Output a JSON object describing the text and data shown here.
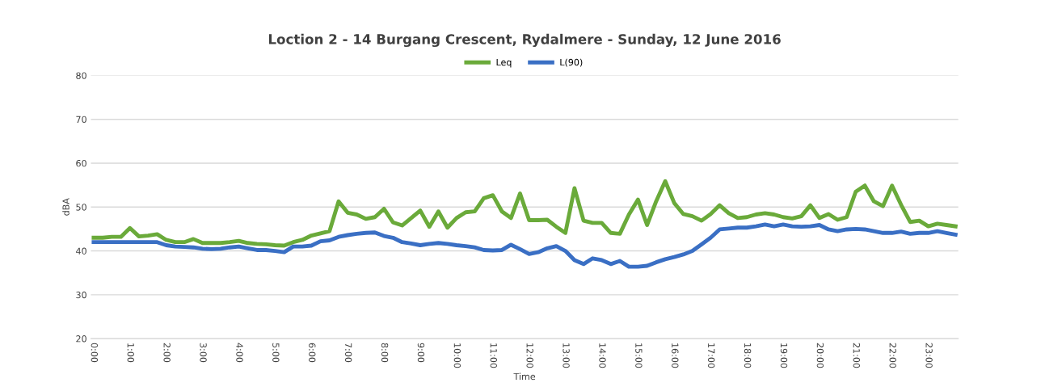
{
  "chart_data": {
    "type": "line",
    "title": "Loction 2 - 14 Burgang Crescent, Rydalmere - Sunday, 12 June 2016",
    "xlabel": "Time",
    "ylabel": "dBA",
    "categories": [
      "0:00",
      null,
      null,
      null,
      "1:00",
      null,
      null,
      null,
      "2:00",
      null,
      null,
      null,
      "3:00",
      null,
      null,
      null,
      "4:00",
      null,
      null,
      null,
      "5:00",
      null,
      null,
      null,
      "6:00",
      null,
      null,
      null,
      "7:00",
      null,
      null,
      null,
      "8:00",
      null,
      null,
      null,
      "9:00",
      null,
      null,
      null,
      "10:00",
      null,
      null,
      null,
      "11:00",
      null,
      null,
      null,
      "12:00",
      null,
      null,
      null,
      "13:00",
      null,
      null,
      null,
      "14:00",
      null,
      null,
      null,
      "15:00",
      null,
      null,
      null,
      "16:00",
      null,
      null,
      null,
      "17:00",
      null,
      null,
      null,
      "18:00",
      null,
      null,
      null,
      "19:00",
      null,
      null,
      null,
      "20:00",
      null,
      null,
      null,
      "21:00",
      null,
      null,
      null,
      "22:00",
      null,
      null,
      null,
      "23:00",
      null,
      null,
      null
    ],
    "series": [
      {
        "name": "Leq",
        "color": "#6aaa3a",
        "values": [
          43,
          43,
          43.2,
          43.2,
          45.2,
          43.3,
          43.5,
          43.8,
          42.5,
          42,
          42,
          42.7,
          41.8,
          41.8,
          41.8,
          42,
          42.3,
          41.8,
          41.6,
          41.5,
          41.3,
          41.2,
          42,
          42.5,
          43.5,
          44,
          44.5,
          51.3,
          48.7,
          48.3,
          47.3,
          47.7,
          49.6,
          46.5,
          45.8,
          47.5,
          49.2,
          45.5,
          49,
          45.3,
          47.5,
          48.8,
          49,
          52,
          52.7,
          49,
          47.5,
          53.1,
          47,
          47,
          47.1,
          45.5,
          44.1,
          54.3,
          46.9,
          46.4,
          46.4,
          44.1,
          43.9,
          48.3,
          51.7,
          45.9,
          51.3,
          55.9,
          50.9,
          48.4,
          47.9,
          46.9,
          48.4,
          50.4,
          48.6,
          47.5,
          47.7,
          48.3,
          48.6,
          48.3,
          47.7,
          47.4,
          47.9,
          50.4,
          47.5,
          48.4,
          47.1,
          47.7,
          53.5,
          54.9,
          51.3,
          50.2,
          54.9,
          50.5,
          46.6,
          46.9,
          45.6,
          46.2,
          45.9,
          45.6
        ]
      },
      {
        "name": "L(90)",
        "color": "#3a6fc4",
        "values": [
          42,
          42,
          42,
          42,
          42,
          42,
          42,
          42,
          41.3,
          41,
          40.9,
          40.8,
          40.5,
          40.4,
          40.5,
          40.8,
          41,
          40.6,
          40.2,
          40.2,
          40,
          39.7,
          41,
          41,
          41.2,
          42.2,
          42.4,
          43.2,
          43.6,
          43.9,
          44.1,
          44.2,
          43.4,
          43,
          42,
          41.7,
          41.3,
          41.6,
          41.8,
          41.6,
          41.3,
          41.1,
          40.8,
          40.2,
          40.1,
          40.2,
          41.4,
          40.4,
          39.3,
          39.7,
          40.6,
          41.1,
          40,
          37.9,
          37,
          38.3,
          37.9,
          37,
          37.7,
          36.4,
          36.4,
          36.6,
          37.4,
          38.1,
          38.6,
          39.2,
          40,
          41.5,
          43,
          44.9,
          45.1,
          45.3,
          45.3,
          45.6,
          46,
          45.6,
          46,
          45.6,
          45.5,
          45.6,
          45.9,
          44.9,
          44.5,
          44.9,
          45,
          44.9,
          44.5,
          44.1,
          44.1,
          44.4,
          43.9,
          44.1,
          44.1,
          44.5,
          44.1,
          43.7
        ]
      }
    ],
    "ylim": [
      20,
      80
    ],
    "yticks": [
      20,
      30,
      40,
      50,
      60,
      70,
      80
    ],
    "grid": "y",
    "legend": "top",
    "marker": "none",
    "line_style": "solid"
  }
}
